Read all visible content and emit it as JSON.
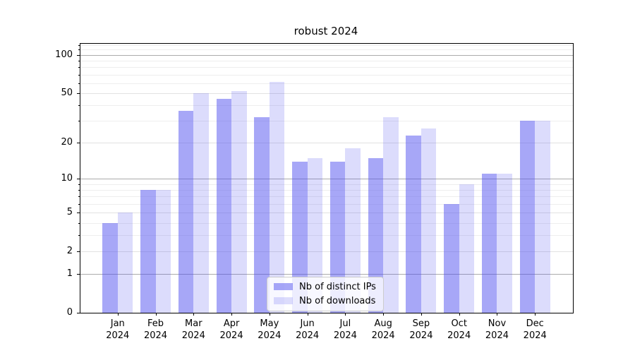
{
  "title": "robust 2024",
  "legend": {
    "items": [
      {
        "label": "Nb of distinct IPs"
      },
      {
        "label": "Nb of downloads"
      }
    ]
  },
  "chart_data": {
    "type": "bar",
    "title": "robust 2024",
    "categories": [
      "Jan",
      "Feb",
      "Mar",
      "Apr",
      "May",
      "Jun",
      "Jul",
      "Aug",
      "Sep",
      "Oct",
      "Nov",
      "Dec"
    ],
    "category_year_label": "2024",
    "series": [
      {
        "name": "Nb of distinct IPs",
        "color": "rgba(80,80,240,0.5)",
        "values": [
          4,
          8,
          36,
          45,
          32,
          14,
          14,
          15,
          23,
          6,
          11,
          30
        ]
      },
      {
        "name": "Nb of downloads",
        "color": "rgba(80,80,240,0.2)",
        "values": [
          5,
          8,
          50,
          52,
          61,
          15,
          18,
          32,
          26,
          9,
          11,
          30
        ]
      }
    ],
    "y_scale": "log10(value+1)",
    "y_ticks": [
      0,
      1,
      2,
      5,
      10,
      20,
      50,
      100
    ],
    "y_minor_ticks": [
      3,
      4,
      6,
      7,
      8,
      9,
      30,
      40,
      60,
      70,
      80,
      90,
      110,
      120
    ],
    "ylim": [
      0,
      124
    ],
    "grid": true,
    "legend_position": "lower center",
    "colors": {
      "decade_grid": "#ababab",
      "labeled_grid": "#e2e2e2",
      "minor_grid": "#eeeeee",
      "spine": "#000000"
    }
  }
}
